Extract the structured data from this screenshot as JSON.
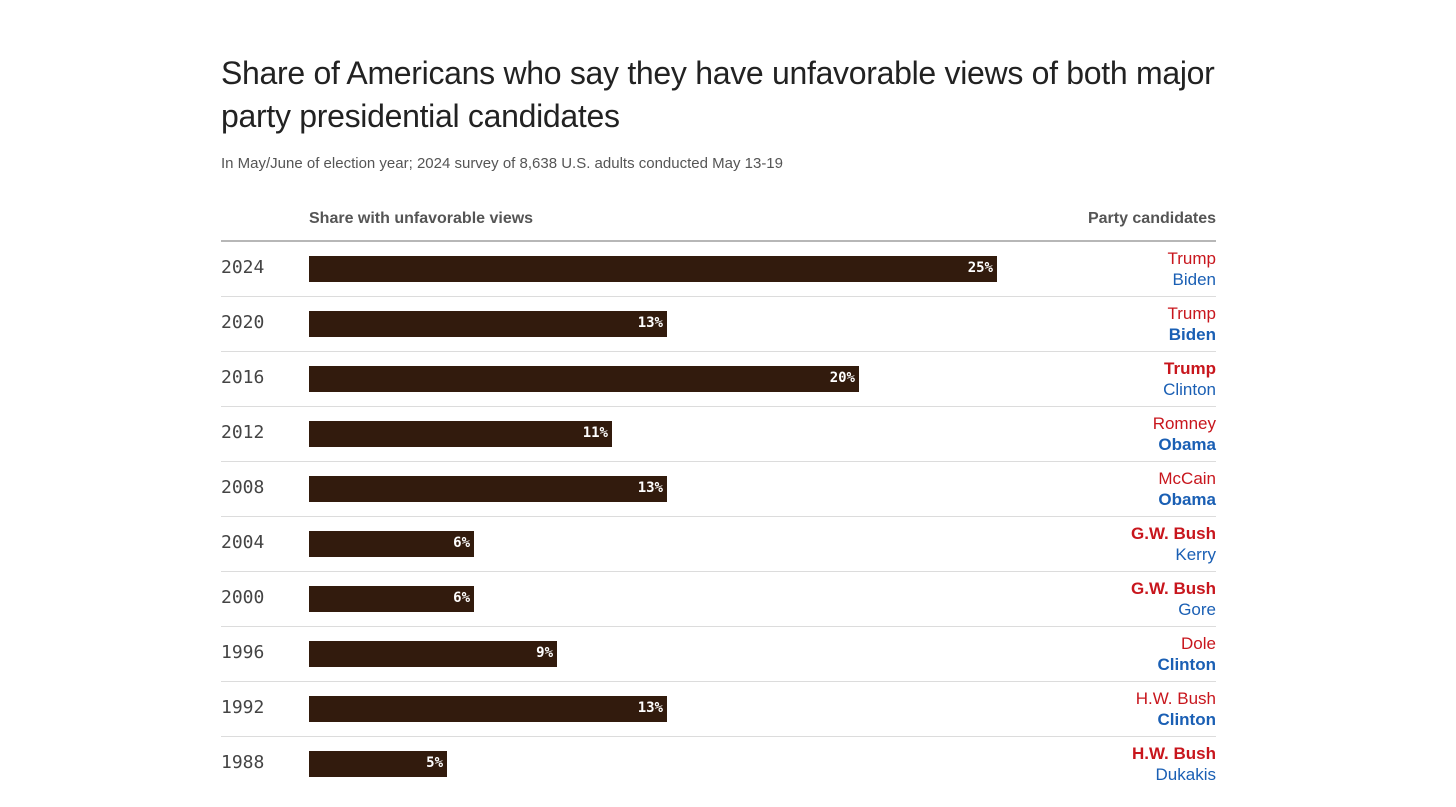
{
  "chart_data": {
    "type": "bar",
    "orientation": "horizontal",
    "title": "Share of Americans who say they have unfavorable views of both major party presidential candidates",
    "subtitle": "In May/June of election year; 2024 survey of 8,638 U.S. adults conducted May 13-19",
    "column_header_left": "Share with unfavorable views",
    "column_header_right": "Party candidates",
    "unit": "%",
    "xlim": [
      0,
      25
    ],
    "grid": false,
    "colors": {
      "bar": "#321b0d",
      "republican": "#c8161d",
      "democrat": "#1a5fb4"
    },
    "categories": [
      "2024",
      "2020",
      "2016",
      "2012",
      "2008",
      "2004",
      "2000",
      "1996",
      "1992",
      "1988"
    ],
    "values": [
      25,
      13,
      20,
      11,
      13,
      6,
      6,
      9,
      13,
      5
    ],
    "value_labels": [
      "25%",
      "13%",
      "20%",
      "11%",
      "13%",
      "6%",
      "6%",
      "9%",
      "13%",
      "5%"
    ],
    "candidates": [
      {
        "republican": "Trump",
        "democrat": "Biden",
        "winner": "none"
      },
      {
        "republican": "Trump",
        "democrat": "Biden",
        "winner": "democrat"
      },
      {
        "republican": "Trump",
        "democrat": "Clinton",
        "winner": "republican"
      },
      {
        "republican": "Romney",
        "democrat": "Obama",
        "winner": "democrat"
      },
      {
        "republican": "McCain",
        "democrat": "Obama",
        "winner": "democrat"
      },
      {
        "republican": "G.W. Bush",
        "democrat": "Kerry",
        "winner": "republican"
      },
      {
        "republican": "G.W. Bush",
        "democrat": "Gore",
        "winner": "republican"
      },
      {
        "republican": "Dole",
        "democrat": "Clinton",
        "winner": "democrat"
      },
      {
        "republican": "H.W. Bush",
        "democrat": "Clinton",
        "winner": "democrat"
      },
      {
        "republican": "H.W. Bush",
        "democrat": "Dukakis",
        "winner": "republican"
      }
    ]
  }
}
